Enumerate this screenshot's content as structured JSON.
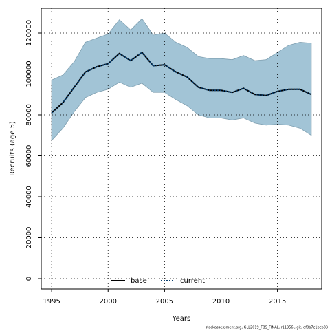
{
  "chart_data": {
    "type": "line",
    "x_label": "Years",
    "y_label": "Recruits (age 5)",
    "footer": "stockassessment.org, GLL2019_FBS_FINAL, r11956 , git: df0b7c1bcb83",
    "x": [
      1995,
      1996,
      1997,
      1998,
      1999,
      2000,
      2001,
      2002,
      2003,
      2004,
      2005,
      2006,
      2007,
      2008,
      2009,
      2010,
      2011,
      2012,
      2013,
      2014,
      2015,
      2016,
      2017,
      2018
    ],
    "series": [
      {
        "name": "base",
        "color": "#000000",
        "dash": false,
        "values": [
          81000,
          86000,
          93500,
          101000,
          103500,
          105000,
          110000,
          106500,
          110500,
          104000,
          104500,
          101000,
          98500,
          93500,
          92000,
          92000,
          91000,
          93000,
          90000,
          89500,
          91500,
          92500,
          92500,
          90000
        ]
      },
      {
        "name": "current",
        "color": "#0a3f6e",
        "dash": true,
        "values": [
          81000,
          86000,
          93500,
          101000,
          103500,
          105000,
          110000,
          106500,
          110500,
          104000,
          104500,
          101000,
          98500,
          93500,
          92000,
          92000,
          91000,
          93000,
          90000,
          89500,
          91500,
          92500,
          92500,
          90000
        ]
      }
    ],
    "band": {
      "color": "#a2c4d6",
      "upper": [
        97000,
        99500,
        106000,
        115500,
        117500,
        119500,
        126500,
        121500,
        127000,
        119000,
        120000,
        115500,
        113000,
        108500,
        107500,
        107500,
        107000,
        109000,
        106500,
        107000,
        110500,
        114000,
        115500,
        115000
      ],
      "lower": [
        67500,
        73500,
        81500,
        88500,
        91000,
        92500,
        96000,
        93500,
        95500,
        91000,
        91000,
        87500,
        84500,
        80000,
        78500,
        78500,
        77500,
        78500,
        76000,
        75000,
        75500,
        75000,
        73500,
        70000
      ]
    },
    "xlim": [
      1994.08,
      2018.92
    ],
    "ylim": [
      -5040,
      132100
    ],
    "xticks": [
      1995,
      2000,
      2005,
      2010,
      2015
    ],
    "yticks": [
      0,
      20000,
      40000,
      60000,
      80000,
      100000,
      120000
    ],
    "grid": true,
    "legend": "bottom"
  }
}
